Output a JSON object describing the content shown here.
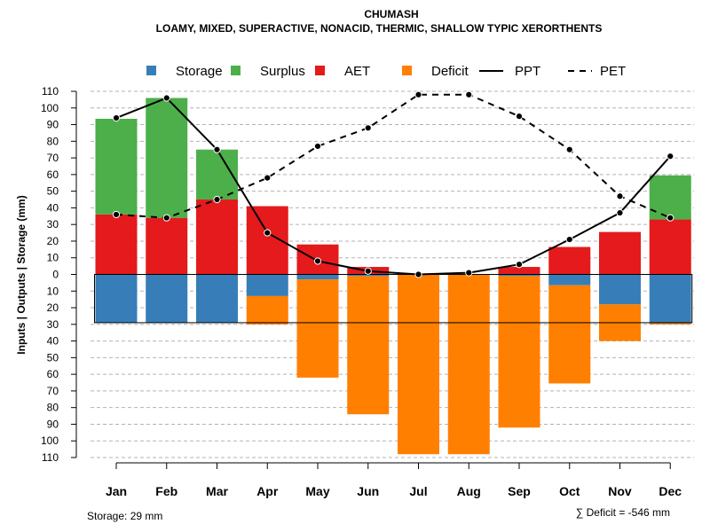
{
  "chart_data": {
    "type": "bar",
    "title": "CHUMASH",
    "subtitle": "LOAMY, MIXED, SUPERACTIVE, NONACID, THERMIC, SHALLOW TYPIC XERORTHENTS",
    "ylabel": "Inputs | Outputs | Storage    (mm)",
    "xlabel": "",
    "ylim": [
      -110,
      110
    ],
    "grid": true,
    "legend_position": "top",
    "categories": [
      "Jan",
      "Feb",
      "Mar",
      "Apr",
      "May",
      "Jun",
      "Jul",
      "Aug",
      "Sep",
      "Oct",
      "Nov",
      "Dec"
    ],
    "y_ticks": [
      110,
      100,
      90,
      80,
      70,
      60,
      50,
      40,
      30,
      20,
      10,
      0,
      -10,
      -20,
      -30,
      -40,
      -50,
      -60,
      -70,
      -80,
      -90,
      -100,
      -110
    ],
    "y_tick_labels": [
      "110",
      "100",
      "90",
      "80",
      "70",
      "60",
      "50",
      "40",
      "30",
      "20",
      "10",
      "0",
      "10",
      "20",
      "30",
      "40",
      "50",
      "60",
      "70",
      "80",
      "90",
      "100",
      "110"
    ],
    "series": [
      {
        "name": "AET",
        "kind": "bar-up",
        "color": "#E41A1C",
        "values": [
          36,
          34,
          45,
          41,
          18,
          4.5,
          0,
          0,
          4.5,
          16.5,
          25.5,
          33
        ]
      },
      {
        "name": "Surplus",
        "kind": "bar-up",
        "color": "#4DAF4A",
        "values": [
          57.5,
          72,
          30,
          0,
          0,
          0,
          0,
          0,
          0,
          0,
          0,
          26.5
        ]
      },
      {
        "name": "Storage",
        "kind": "bar-down",
        "color": "#377EB8",
        "values": [
          29,
          29,
          29,
          13,
          3,
          1,
          0,
          0,
          1,
          6.5,
          18,
          29
        ]
      },
      {
        "name": "Deficit",
        "kind": "bar-down",
        "color": "#FF7F00",
        "values": [
          0,
          0,
          0,
          17,
          59,
          83,
          108,
          108,
          91,
          59,
          22,
          1
        ]
      },
      {
        "name": "PPT",
        "kind": "line",
        "style": "solid",
        "color": "#000000",
        "values": [
          94,
          106,
          75,
          25,
          8,
          2,
          0,
          1,
          6,
          21,
          37,
          71
        ]
      },
      {
        "name": "PET",
        "kind": "line",
        "style": "dashed",
        "color": "#000000",
        "values": [
          36,
          34,
          45,
          58,
          77,
          88,
          108,
          108,
          95,
          75,
          47,
          34
        ]
      }
    ],
    "storage_capacity": 29,
    "legend": [
      {
        "label": "Storage",
        "color": "#377EB8",
        "kind": "box"
      },
      {
        "label": "Surplus",
        "color": "#4DAF4A",
        "kind": "box"
      },
      {
        "label": "AET",
        "color": "#E41A1C",
        "kind": "box"
      },
      {
        "label": "Deficit",
        "color": "#FF7F00",
        "kind": "box"
      },
      {
        "label": "PPT",
        "color": "#000000",
        "kind": "solid"
      },
      {
        "label": "PET",
        "color": "#000000",
        "kind": "dashed"
      }
    ],
    "annotations": {
      "storage": "Storage: 29 mm",
      "deficit": "∑ Deficit = -546 mm"
    }
  }
}
